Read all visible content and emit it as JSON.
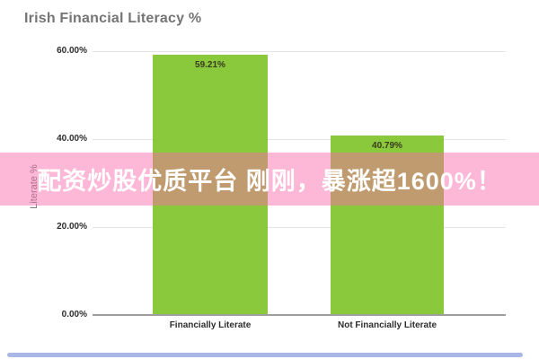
{
  "chart_data": {
    "type": "bar",
    "title": "Irish Financial Literacy %",
    "categories": [
      "Financially Literate",
      "Not Financially Literate"
    ],
    "values": [
      59.21,
      40.79
    ],
    "value_labels": [
      "59.21%",
      "40.79%"
    ],
    "xlabel": "",
    "ylabel": "Literate %",
    "ylim": [
      0,
      60
    ],
    "y_ticks": [
      "60.00%",
      "40.00%",
      "20.00%",
      "0.00%"
    ],
    "grid": true,
    "legend_position": "none",
    "bar_color": "#8ac83c",
    "title_color": "#757575",
    "axis_line_color": "#9e9e9e"
  },
  "overlay_banner": {
    "text": "配资炒股优质平台 刚刚，暴涨超1600%！",
    "background": "rgba(250,105,170,0.47)",
    "text_color": "#ffffff"
  },
  "footer": {
    "accent_bar_color": "#a9b7e6"
  }
}
